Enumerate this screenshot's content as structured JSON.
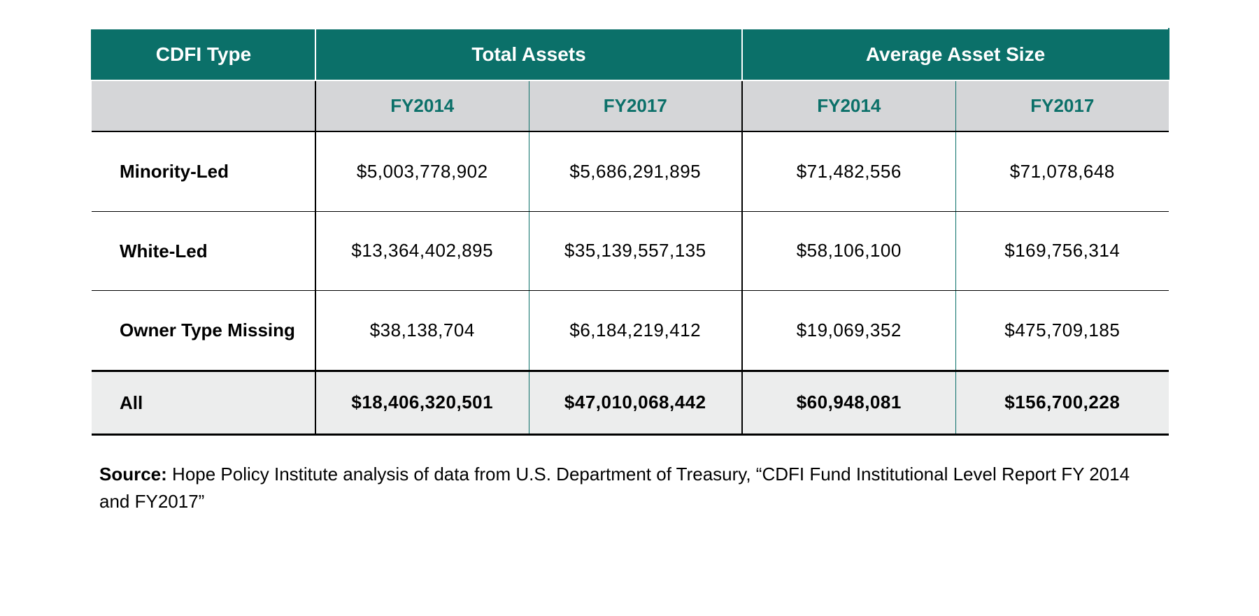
{
  "table": {
    "type": "table",
    "colors": {
      "header_bg": "#0b7069",
      "header_text": "#ffffff",
      "subheader_bg": "#d5d6d8",
      "subheader_text": "#0b7069",
      "body_text": "#000000",
      "total_bg": "#eceded",
      "border_strong": "#000000",
      "divider_teal": "#0b7069",
      "background": "#ffffff"
    },
    "typography": {
      "header_fontsize_pt": 21,
      "subheader_fontsize_pt": 20,
      "body_fontsize_pt": 20,
      "source_fontsize_pt": 20,
      "header_weight": 700,
      "label_weight": 700,
      "data_weight": 400
    },
    "columns": {
      "label_header": "CDFI Type",
      "groups": [
        {
          "title": "Total Assets",
          "years": [
            "FY2014",
            "FY2017"
          ]
        },
        {
          "title": "Average Asset Size",
          "years": [
            "FY2014",
            "FY2017"
          ]
        }
      ]
    },
    "rows": [
      {
        "label": "Minority-Led",
        "values": [
          "$5,003,778,902",
          "$5,686,291,895",
          "$71,482,556",
          "$71,078,648"
        ]
      },
      {
        "label": "White-Led",
        "values": [
          "$13,364,402,895",
          "$35,139,557,135",
          "$58,106,100",
          "$169,756,314"
        ]
      },
      {
        "label": "Owner Type Missing",
        "values": [
          "$38,138,704",
          "$6,184,219,412",
          "$19,069,352",
          "$475,709,185"
        ]
      }
    ],
    "total_row": {
      "label": "All",
      "values": [
        "$18,406,320,501",
        "$47,010,068,442",
        "$60,948,081",
        "$156,700,228"
      ]
    }
  },
  "source": {
    "label": "Source:",
    "text": " Hope Policy Institute analysis of data from U.S. Department of Treasury, “CDFI Fund Institutional Level Report FY 2014 and FY2017”"
  }
}
